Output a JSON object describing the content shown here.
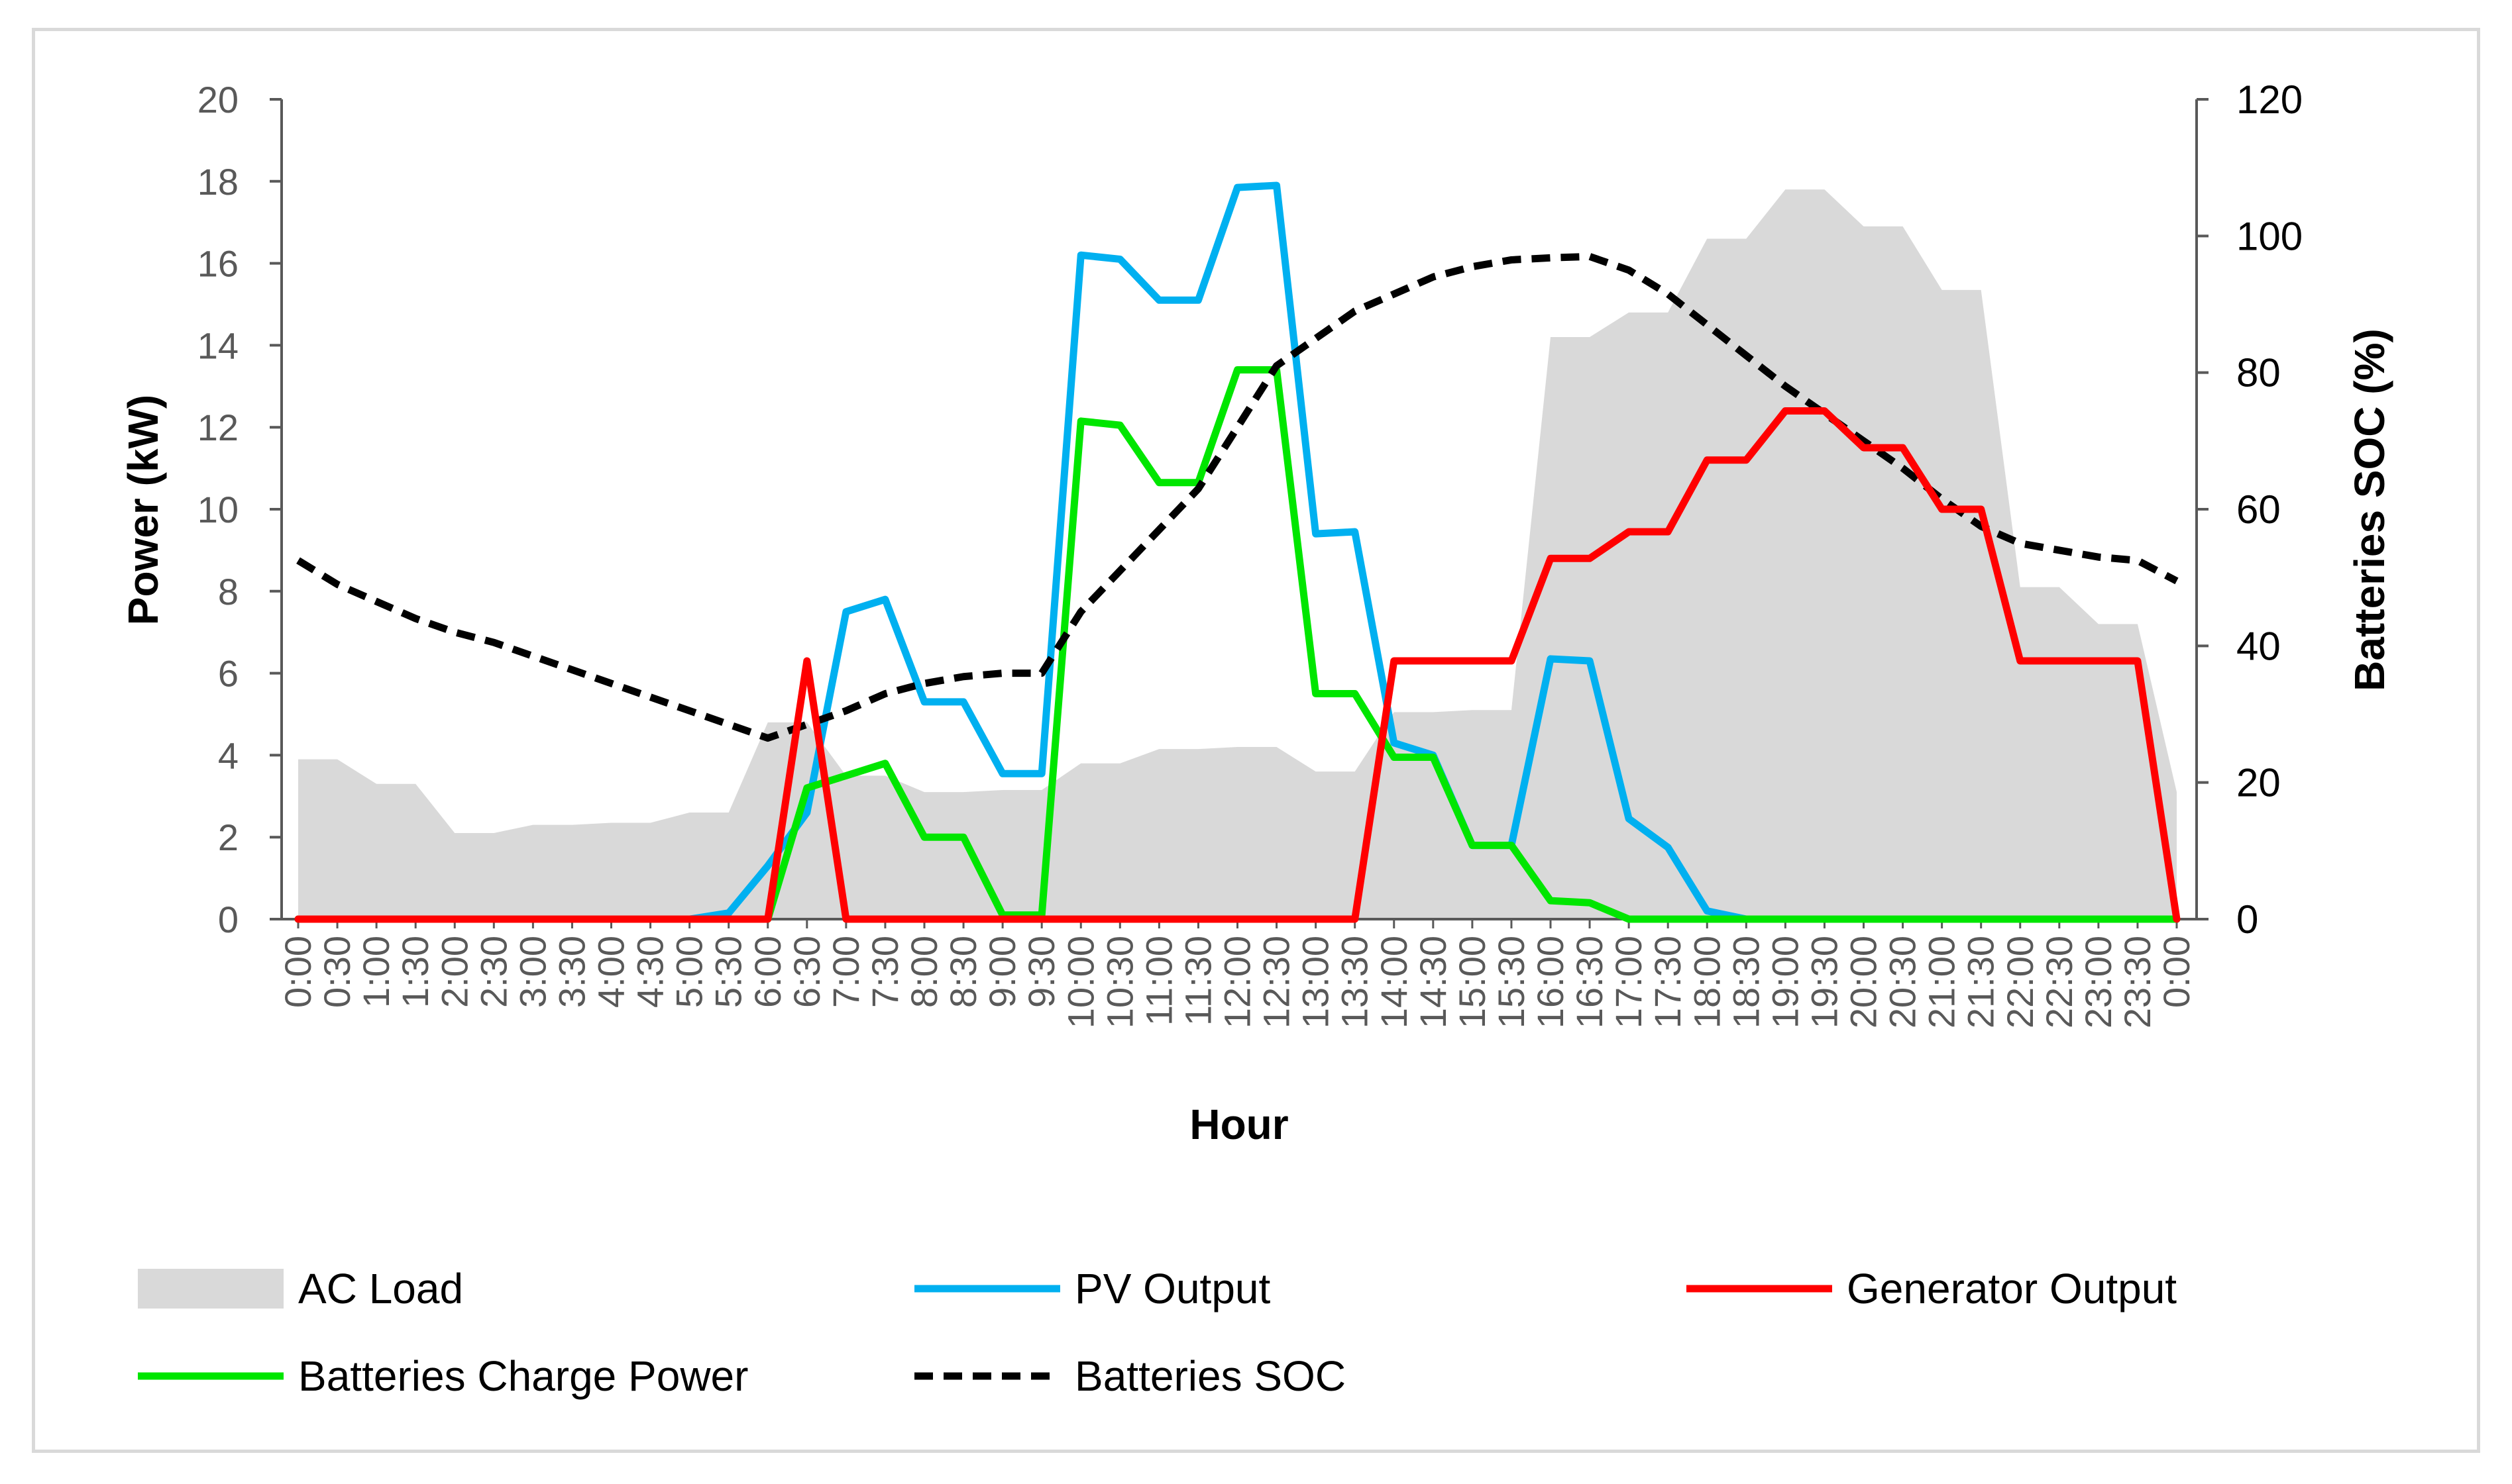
{
  "chart_data": {
    "type": "line",
    "title": "",
    "xlabel": "Hour",
    "ylabel": "Power (kW)",
    "y2label": "Batteries SOC (%)",
    "ylim": [
      0,
      20
    ],
    "y2lim": [
      0,
      120
    ],
    "yticks": [
      0,
      2,
      4,
      6,
      8,
      10,
      12,
      14,
      16,
      18,
      20
    ],
    "y2ticks": [
      0,
      20,
      40,
      60,
      80,
      100,
      120
    ],
    "categories": [
      "0:00",
      "0:30",
      "1:00",
      "1:30",
      "2:00",
      "2:30",
      "3:00",
      "3:30",
      "4:00",
      "4:30",
      "5:00",
      "5:30",
      "6:00",
      "6:30",
      "7:00",
      "7:30",
      "8:00",
      "8:30",
      "9:00",
      "9:30",
      "10:00",
      "10:30",
      "11:00",
      "11:30",
      "12:00",
      "12:30",
      "13:00",
      "13:30",
      "14:00",
      "14:30",
      "15:00",
      "15:30",
      "16:00",
      "16:30",
      "17:00",
      "17:30",
      "18:00",
      "18:30",
      "19:00",
      "19:30",
      "20:00",
      "20:30",
      "21:00",
      "21:30",
      "22:00",
      "22:30",
      "23:00",
      "23:30",
      "0:00"
    ],
    "series": [
      {
        "name": "AC Load",
        "kind": "area",
        "axis": "left",
        "color": "#d9d9d9",
        "values": [
          3.9,
          3.9,
          3.3,
          3.3,
          2.1,
          2.1,
          2.3,
          2.3,
          2.35,
          2.35,
          2.6,
          2.6,
          4.8,
          4.8,
          3.5,
          3.5,
          3.1,
          3.1,
          3.15,
          3.15,
          3.8,
          3.8,
          4.15,
          4.15,
          4.2,
          4.2,
          3.6,
          3.6,
          5.05,
          5.05,
          5.1,
          5.1,
          14.2,
          14.2,
          14.8,
          14.8,
          16.6,
          16.6,
          17.8,
          17.8,
          16.9,
          16.9,
          15.35,
          15.35,
          8.1,
          8.1,
          7.2,
          7.2,
          3.1
        ]
      },
      {
        "name": "PV Output",
        "kind": "line",
        "axis": "left",
        "color": "#00b0f0",
        "values": [
          0,
          0,
          0,
          0,
          0,
          0,
          0,
          0,
          0,
          0,
          0,
          0.15,
          1.3,
          2.6,
          7.5,
          7.8,
          5.3,
          5.3,
          3.55,
          3.55,
          16.2,
          16.1,
          15.1,
          15.1,
          17.85,
          17.9,
          9.4,
          9.45,
          4.3,
          4.0,
          1.8,
          1.8,
          6.35,
          6.3,
          2.45,
          1.75,
          0.2,
          0,
          0,
          0,
          0,
          0,
          0,
          0,
          0,
          0,
          0,
          0,
          0
        ]
      },
      {
        "name": "Generator Output",
        "kind": "line",
        "axis": "left",
        "color": "#ff0000",
        "values": [
          0,
          0,
          0,
          0,
          0,
          0,
          0,
          0,
          0,
          0,
          0,
          0,
          0,
          6.3,
          0,
          0,
          0,
          0,
          0,
          0,
          0,
          0,
          0,
          0,
          0,
          0,
          0,
          0,
          6.3,
          6.3,
          6.3,
          6.3,
          8.8,
          8.8,
          9.45,
          9.45,
          11.2,
          11.2,
          12.4,
          12.4,
          11.5,
          11.5,
          10.0,
          10.0,
          6.3,
          6.3,
          6.3,
          6.3,
          0
        ]
      },
      {
        "name": "Batteries Charge Power",
        "kind": "line",
        "axis": "left",
        "color": "#00e600",
        "values": [
          0,
          0,
          0,
          0,
          0,
          0,
          0,
          0,
          0,
          0,
          0,
          0,
          0,
          3.2,
          3.5,
          3.8,
          2.0,
          2.0,
          0.1,
          0.1,
          12.15,
          12.05,
          10.65,
          10.65,
          13.4,
          13.4,
          5.5,
          5.5,
          3.95,
          3.95,
          1.8,
          1.8,
          0.45,
          0.4,
          0,
          0,
          0,
          0,
          0,
          0,
          0,
          0,
          0,
          0,
          0,
          0,
          0,
          0,
          0
        ]
      },
      {
        "name": "Batteries SOC",
        "kind": "dashed",
        "axis": "right",
        "color": "#000000",
        "values": [
          52.5,
          49,
          46.5,
          44,
          42,
          40.5,
          38.5,
          36.5,
          34.5,
          32.5,
          30.5,
          28.5,
          26.5,
          28.5,
          30.5,
          33,
          34.5,
          35.5,
          36,
          36,
          45,
          51,
          57,
          63,
          72,
          81,
          85,
          89,
          91.5,
          94,
          95.5,
          96.5,
          96.8,
          97,
          95,
          91.5,
          87,
          82.5,
          78,
          74,
          70,
          66,
          61.5,
          57.5,
          55,
          54,
          53,
          52.5,
          49.5
        ]
      }
    ],
    "legend": {
      "position": "bottom",
      "entries": [
        "AC Load",
        "PV Output",
        "Generator Output",
        "Batteries Charge Power",
        "Batteries SOC"
      ]
    }
  }
}
